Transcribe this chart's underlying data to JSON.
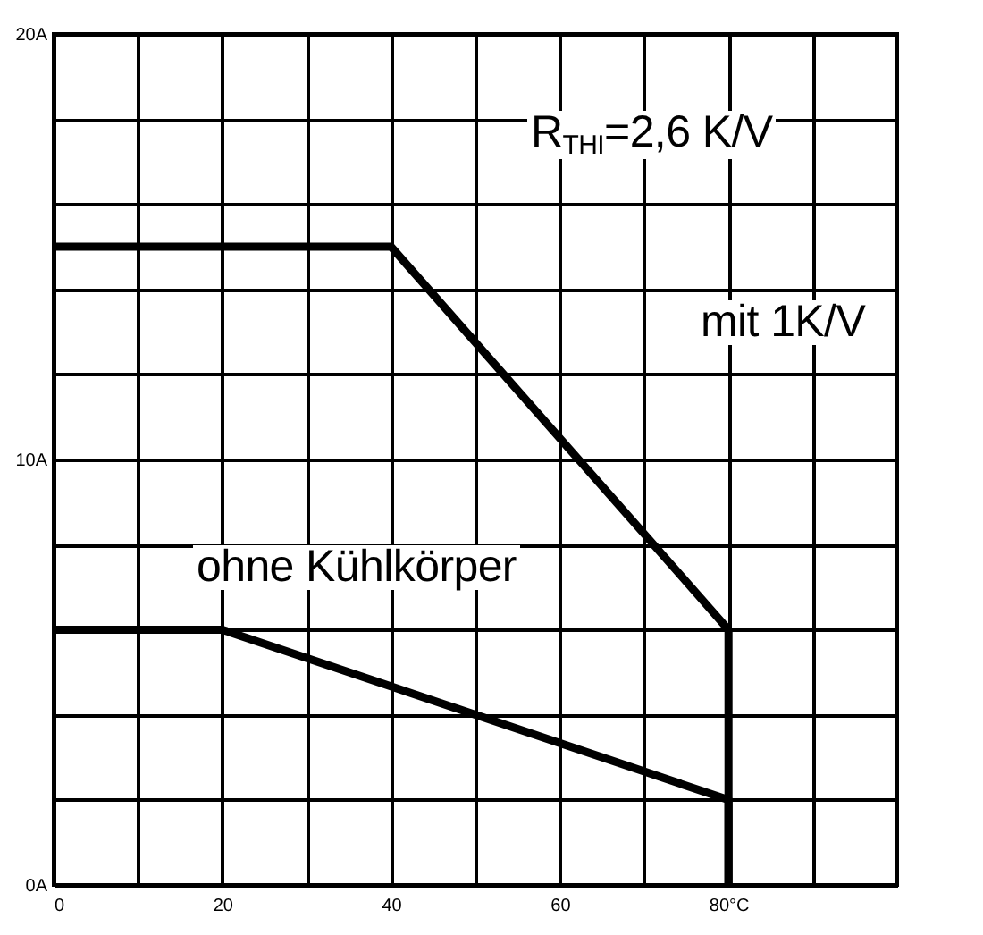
{
  "chart_data": {
    "type": "line",
    "xlim": [
      0,
      100
    ],
    "xticks": [
      0,
      {
        "value": 10,
        "label": null
      },
      20,
      {
        "value": 30,
        "label": null
      },
      40,
      {
        "value": 50,
        "label": null
      },
      60,
      {
        "value": 70,
        "label": null
      },
      {
        "value": 80,
        "label": "80°C"
      },
      {
        "value": 90,
        "label": null
      }
    ],
    "ylim": [
      0,
      20
    ],
    "yticks": [
      {
        "value": 0,
        "label": "0A"
      },
      {
        "value": 2,
        "label": null
      },
      {
        "value": 4,
        "label": null
      },
      {
        "value": 6,
        "label": null
      },
      {
        "value": 8,
        "label": null
      },
      {
        "value": 10,
        "label": "10A"
      },
      {
        "value": 12,
        "label": null
      },
      {
        "value": 14,
        "label": null
      },
      {
        "value": 16,
        "label": null
      },
      {
        "value": 18,
        "label": null
      },
      {
        "value": 20,
        "label": "20A"
      }
    ],
    "grid": true,
    "marker": "none",
    "line_style": "solid",
    "series": [
      {
        "color": "#000000",
        "x": [
          0,
          40,
          80,
          80
        ],
        "values": [
          15,
          15,
          6,
          0
        ]
      },
      {
        "color": "#000000",
        "x": [
          0,
          20,
          80,
          80
        ],
        "values": [
          6,
          6,
          2,
          0
        ]
      }
    ],
    "annotations": [
      "R$_{THI}$=2,6 K/V",
      "mit 1K/V",
      "ohne Kühlkörper"
    ]
  }
}
